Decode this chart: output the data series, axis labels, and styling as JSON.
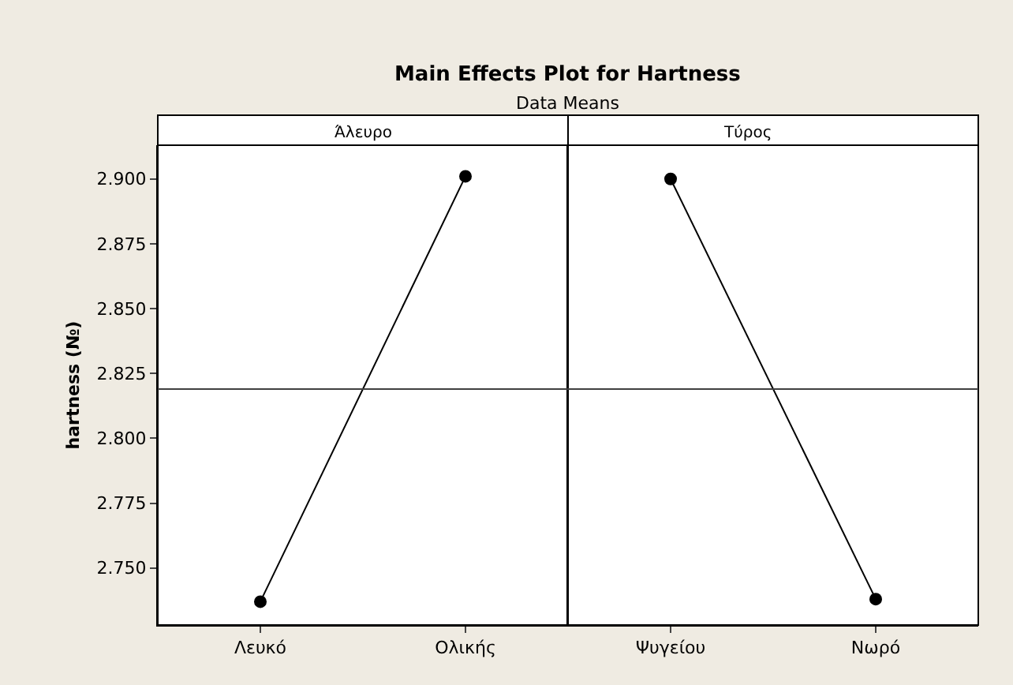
{
  "chart_data": [
    {
      "type": "other",
      "title": "Main Effects Plot for Hartness",
      "subtitle": "Data Means"
    },
    {
      "type": "line",
      "title": "Άλευρο",
      "ylabel": "hartness (№)",
      "categories": [
        "Λευκό",
        "Ολικής"
      ],
      "values": [
        2.737,
        2.901
      ],
      "color": "#000000",
      "marker": "circle",
      "line_style": "solid",
      "grid": false,
      "ylim": [
        2.728,
        2.913
      ],
      "yticks": [
        {
          "value": 2.75,
          "label": "2.750"
        },
        {
          "value": 2.775,
          "label": "2.775"
        },
        {
          "value": 2.8,
          "label": "2.800"
        },
        {
          "value": 2.825,
          "label": "2.825"
        },
        {
          "value": 2.85,
          "label": "2.850"
        },
        {
          "value": 2.875,
          "label": "2.875"
        },
        {
          "value": 2.9,
          "label": "2.900"
        }
      ],
      "ref_lines": [
        {
          "axis": "y",
          "value": 2.819,
          "color": "#404040"
        }
      ]
    },
    {
      "type": "line",
      "title": "Τύρος",
      "categories": [
        "Ψυγείου",
        "Νωρό"
      ],
      "values": [
        2.9,
        2.738
      ],
      "color": "#000000",
      "marker": "circle",
      "line_style": "solid",
      "grid": false,
      "tick_labels": "x",
      "ylim": [
        2.728,
        2.913
      ],
      "ref_lines": [
        {
          "axis": "y",
          "value": 2.819,
          "color": "#404040"
        }
      ]
    }
  ]
}
